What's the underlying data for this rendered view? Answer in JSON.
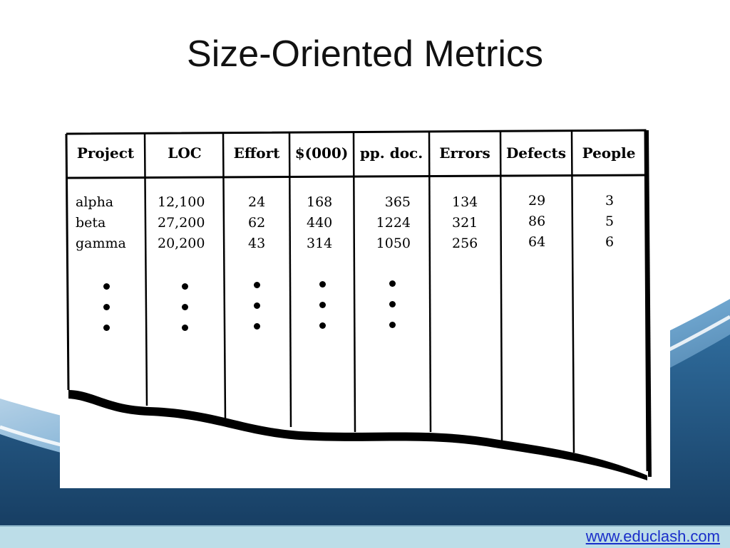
{
  "slide": {
    "title": "Size-Oriented Metrics",
    "footer_link": "www.educlash.com"
  },
  "table": {
    "headers": [
      "Project",
      "LOC",
      "Effort",
      "$(000)",
      "pp. doc.",
      "Errors",
      "Defects",
      "People"
    ],
    "columns": [
      [
        "alpha",
        "beta",
        "gamma"
      ],
      [
        "12,100",
        "27,200",
        "20,200"
      ],
      [
        "24",
        "62",
        "43"
      ],
      [
        "168",
        "440",
        "314"
      ],
      [
        "365",
        "1224",
        "1050"
      ],
      [
        "134",
        "321",
        "256"
      ],
      [
        "29",
        "86",
        "64"
      ],
      [
        "3",
        "5",
        "6"
      ]
    ],
    "continuation_marker": "ellipsis-dots"
  },
  "colors": {
    "background_wave_dark": "#1f4e78",
    "background_wave_light": "#5f9cc8",
    "footer_bar": "#bcdde8",
    "link": "#1a2ec9"
  }
}
